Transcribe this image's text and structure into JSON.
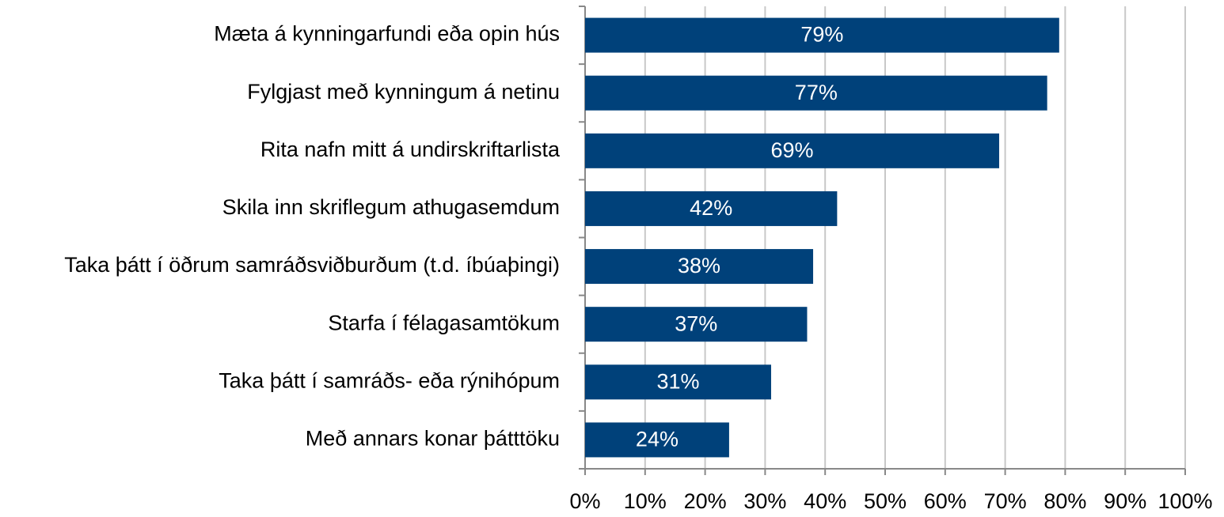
{
  "chart_data": {
    "type": "bar",
    "orientation": "horizontal",
    "categories": [
      "Mæta á kynningarfundi eða opin hús",
      "Fylgjast með kynningum á netinu",
      "Rita nafn mitt á undirskriftarlista",
      "Skila inn skriflegum athugasemdum",
      "Taka þátt í öðrum samráðsviðburðum (t.d. íbúaþingi)",
      "Starfa í félagasamtökum",
      "Taka þátt í samráðs- eða rýnihópum",
      "Með annars konar þátttöku"
    ],
    "values": [
      79,
      77,
      69,
      42,
      38,
      37,
      31,
      24
    ],
    "value_labels": [
      "79%",
      "77%",
      "69%",
      "42%",
      "38%",
      "37%",
      "31%",
      "24%"
    ],
    "color": "#00417a",
    "xlim": [
      0,
      100
    ],
    "xticks": [
      {
        "value": 0,
        "label": "0%"
      },
      {
        "value": 10,
        "label": "10%"
      },
      {
        "value": 20,
        "label": "20%"
      },
      {
        "value": 30,
        "label": "30%"
      },
      {
        "value": 40,
        "label": "40%"
      },
      {
        "value": 50,
        "label": "50%"
      },
      {
        "value": 60,
        "label": "60%"
      },
      {
        "value": 70,
        "label": "70%"
      },
      {
        "value": 80,
        "label": "80%"
      },
      {
        "value": 90,
        "label": "90%"
      },
      {
        "value": 100,
        "label": "100%"
      }
    ],
    "grid": true
  }
}
